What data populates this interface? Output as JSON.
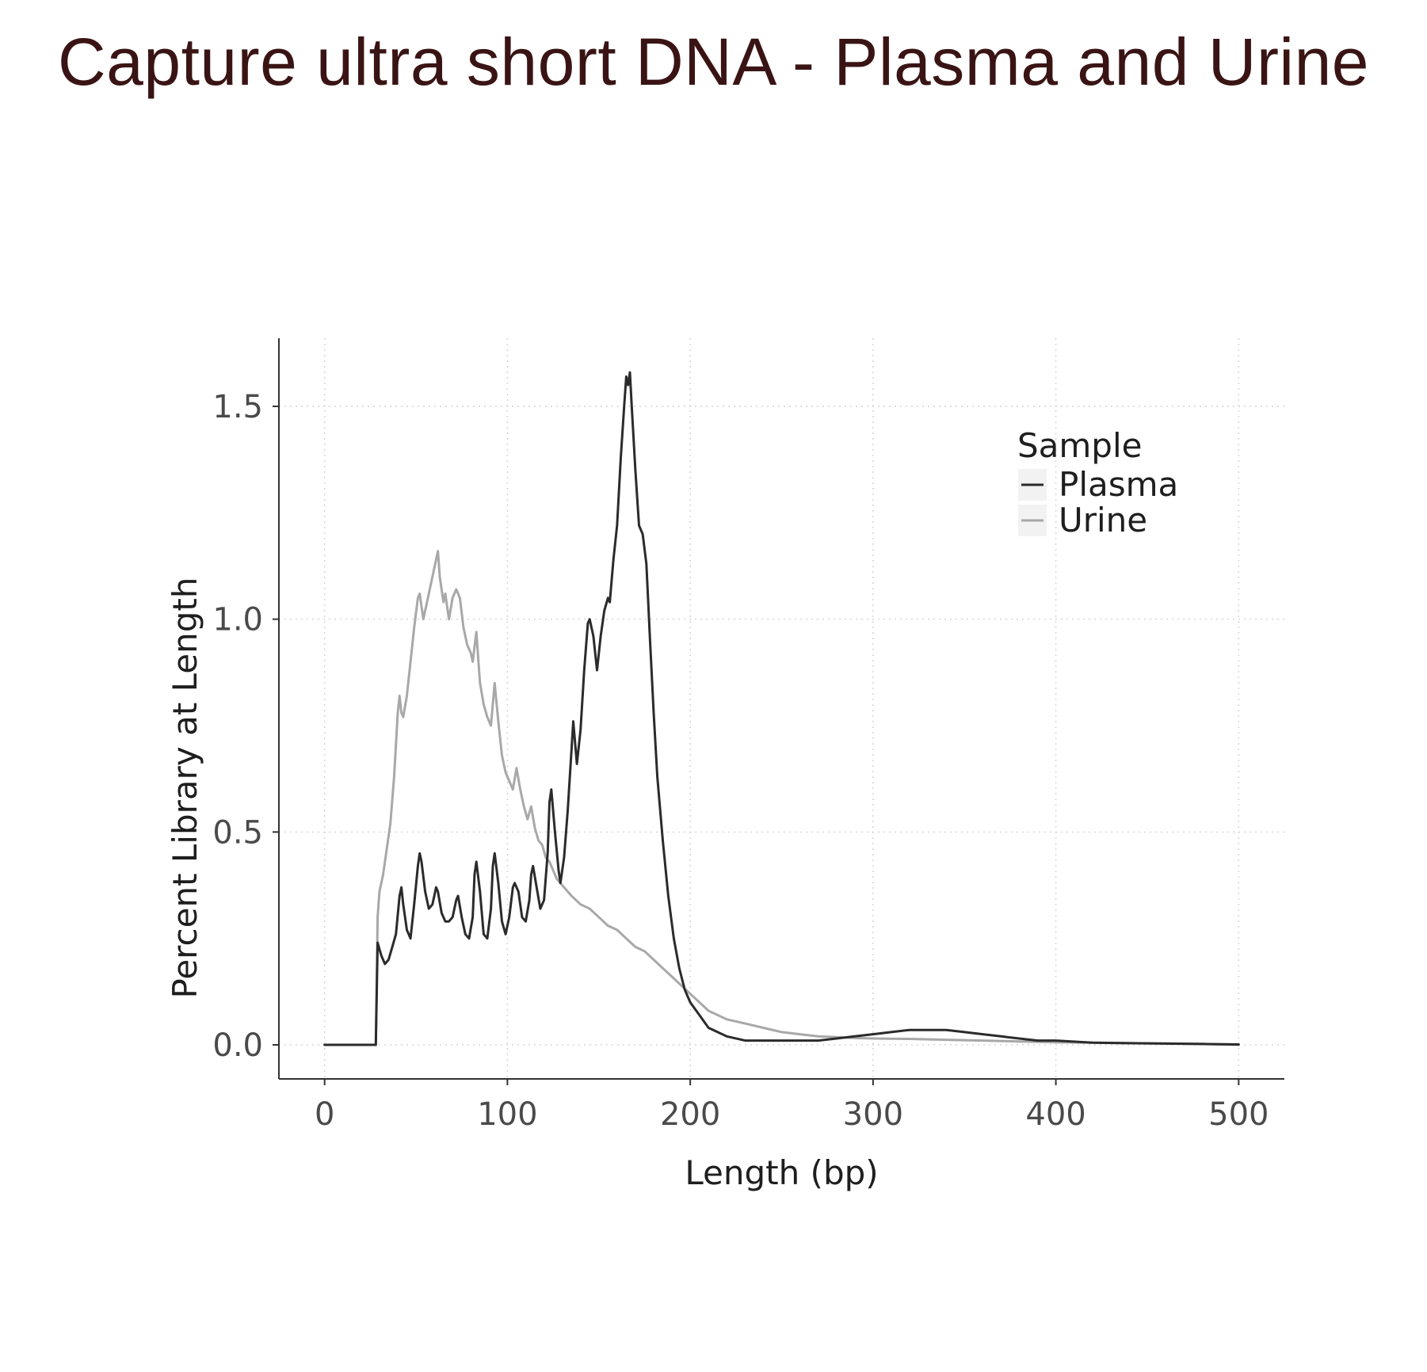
{
  "page": {
    "title": "Capture ultra short DNA - Plasma and Urine"
  },
  "chart_data": {
    "type": "line",
    "title": "",
    "xlabel": "Length (bp)",
    "ylabel": "Percent Library at Length",
    "xlim": [
      -25,
      525
    ],
    "ylim": [
      -0.08,
      1.66
    ],
    "xticks": [
      0,
      100,
      200,
      300,
      400,
      500
    ],
    "yticks": [
      0.0,
      0.5,
      1.0,
      1.5
    ],
    "xtick_labels": [
      "0",
      "100",
      "200",
      "300",
      "400",
      "500"
    ],
    "ytick_labels": [
      "0.0",
      "0.5",
      "1.0",
      "1.5"
    ],
    "grid": true,
    "legend": {
      "title": "Sample",
      "position": "top-right"
    },
    "series": [
      {
        "name": "Plasma",
        "color": "#2b2b2b",
        "points": [
          [
            0,
            0
          ],
          [
            27,
            0
          ],
          [
            28,
            0.0
          ],
          [
            29,
            0.24
          ],
          [
            31,
            0.21
          ],
          [
            33,
            0.19
          ],
          [
            35,
            0.2
          ],
          [
            37,
            0.23
          ],
          [
            39,
            0.26
          ],
          [
            41,
            0.35
          ],
          [
            42,
            0.37
          ],
          [
            43,
            0.33
          ],
          [
            45,
            0.27
          ],
          [
            47,
            0.25
          ],
          [
            49,
            0.33
          ],
          [
            51,
            0.42
          ],
          [
            52,
            0.45
          ],
          [
            53,
            0.43
          ],
          [
            55,
            0.36
          ],
          [
            57,
            0.32
          ],
          [
            59,
            0.33
          ],
          [
            61,
            0.37
          ],
          [
            62,
            0.36
          ],
          [
            64,
            0.31
          ],
          [
            66,
            0.29
          ],
          [
            68,
            0.29
          ],
          [
            70,
            0.3
          ],
          [
            72,
            0.34
          ],
          [
            73,
            0.35
          ],
          [
            75,
            0.3
          ],
          [
            77,
            0.26
          ],
          [
            79,
            0.25
          ],
          [
            81,
            0.3
          ],
          [
            82,
            0.4
          ],
          [
            83,
            0.43
          ],
          [
            85,
            0.36
          ],
          [
            87,
            0.26
          ],
          [
            89,
            0.25
          ],
          [
            91,
            0.32
          ],
          [
            92,
            0.42
          ],
          [
            93,
            0.45
          ],
          [
            95,
            0.38
          ],
          [
            97,
            0.29
          ],
          [
            99,
            0.26
          ],
          [
            101,
            0.3
          ],
          [
            103,
            0.37
          ],
          [
            104,
            0.38
          ],
          [
            106,
            0.36
          ],
          [
            108,
            0.3
          ],
          [
            110,
            0.29
          ],
          [
            112,
            0.34
          ],
          [
            113,
            0.4
          ],
          [
            114,
            0.42
          ],
          [
            116,
            0.37
          ],
          [
            118,
            0.32
          ],
          [
            120,
            0.34
          ],
          [
            122,
            0.45
          ],
          [
            123,
            0.57
          ],
          [
            124,
            0.6
          ],
          [
            126,
            0.5
          ],
          [
            128,
            0.41
          ],
          [
            129,
            0.38
          ],
          [
            131,
            0.44
          ],
          [
            133,
            0.55
          ],
          [
            135,
            0.69
          ],
          [
            136,
            0.76
          ],
          [
            138,
            0.66
          ],
          [
            140,
            0.74
          ],
          [
            142,
            0.88
          ],
          [
            144,
            0.99
          ],
          [
            145,
            1.0
          ],
          [
            147,
            0.96
          ],
          [
            149,
            0.88
          ],
          [
            151,
            0.96
          ],
          [
            153,
            1.02
          ],
          [
            155,
            1.05
          ],
          [
            156,
            1.04
          ],
          [
            158,
            1.14
          ],
          [
            160,
            1.22
          ],
          [
            162,
            1.38
          ],
          [
            164,
            1.51
          ],
          [
            165,
            1.57
          ],
          [
            166,
            1.55
          ],
          [
            167,
            1.58
          ],
          [
            168,
            1.5
          ],
          [
            170,
            1.35
          ],
          [
            172,
            1.22
          ],
          [
            174,
            1.2
          ],
          [
            176,
            1.13
          ],
          [
            178,
            0.95
          ],
          [
            180,
            0.78
          ],
          [
            182,
            0.63
          ],
          [
            185,
            0.48
          ],
          [
            188,
            0.35
          ],
          [
            191,
            0.25
          ],
          [
            194,
            0.18
          ],
          [
            197,
            0.13
          ],
          [
            200,
            0.1
          ],
          [
            205,
            0.07
          ],
          [
            210,
            0.04
          ],
          [
            215,
            0.03
          ],
          [
            220,
            0.02
          ],
          [
            230,
            0.01
          ],
          [
            240,
            0.01
          ],
          [
            250,
            0.01
          ],
          [
            260,
            0.01
          ],
          [
            270,
            0.01
          ],
          [
            280,
            0.015
          ],
          [
            290,
            0.02
          ],
          [
            300,
            0.025
          ],
          [
            310,
            0.03
          ],
          [
            320,
            0.035
          ],
          [
            330,
            0.035
          ],
          [
            340,
            0.035
          ],
          [
            350,
            0.03
          ],
          [
            360,
            0.025
          ],
          [
            370,
            0.02
          ],
          [
            380,
            0.015
          ],
          [
            390,
            0.01
          ],
          [
            400,
            0.01
          ],
          [
            420,
            0.005
          ],
          [
            440,
            0.004
          ],
          [
            460,
            0.003
          ],
          [
            480,
            0.002
          ],
          [
            500,
            0.001
          ]
        ]
      },
      {
        "name": "Urine",
        "color": "#a8a8a8",
        "points": [
          [
            0,
            0
          ],
          [
            28,
            0
          ],
          [
            29,
            0.3
          ],
          [
            30,
            0.36
          ],
          [
            32,
            0.4
          ],
          [
            34,
            0.46
          ],
          [
            36,
            0.52
          ],
          [
            38,
            0.63
          ],
          [
            40,
            0.78
          ],
          [
            41,
            0.82
          ],
          [
            42,
            0.78
          ],
          [
            43,
            0.77
          ],
          [
            45,
            0.82
          ],
          [
            47,
            0.9
          ],
          [
            49,
            0.98
          ],
          [
            51,
            1.05
          ],
          [
            52,
            1.06
          ],
          [
            54,
            1.0
          ],
          [
            56,
            1.04
          ],
          [
            58,
            1.08
          ],
          [
            60,
            1.12
          ],
          [
            62,
            1.16
          ],
          [
            63,
            1.1
          ],
          [
            65,
            1.04
          ],
          [
            66,
            1.06
          ],
          [
            68,
            1.0
          ],
          [
            70,
            1.05
          ],
          [
            72,
            1.07
          ],
          [
            74,
            1.05
          ],
          [
            76,
            0.98
          ],
          [
            78,
            0.94
          ],
          [
            80,
            0.92
          ],
          [
            81,
            0.9
          ],
          [
            83,
            0.97
          ],
          [
            85,
            0.85
          ],
          [
            87,
            0.8
          ],
          [
            89,
            0.77
          ],
          [
            91,
            0.75
          ],
          [
            93,
            0.85
          ],
          [
            95,
            0.76
          ],
          [
            97,
            0.68
          ],
          [
            99,
            0.64
          ],
          [
            101,
            0.62
          ],
          [
            103,
            0.6
          ],
          [
            105,
            0.65
          ],
          [
            107,
            0.6
          ],
          [
            109,
            0.56
          ],
          [
            111,
            0.53
          ],
          [
            113,
            0.56
          ],
          [
            115,
            0.51
          ],
          [
            117,
            0.48
          ],
          [
            119,
            0.47
          ],
          [
            121,
            0.44
          ],
          [
            123,
            0.43
          ],
          [
            125,
            0.41
          ],
          [
            127,
            0.39
          ],
          [
            129,
            0.38
          ],
          [
            131,
            0.37
          ],
          [
            135,
            0.35
          ],
          [
            140,
            0.33
          ],
          [
            145,
            0.32
          ],
          [
            150,
            0.3
          ],
          [
            155,
            0.28
          ],
          [
            160,
            0.27
          ],
          [
            165,
            0.25
          ],
          [
            170,
            0.23
          ],
          [
            175,
            0.22
          ],
          [
            180,
            0.2
          ],
          [
            185,
            0.18
          ],
          [
            190,
            0.16
          ],
          [
            195,
            0.14
          ],
          [
            200,
            0.12
          ],
          [
            205,
            0.1
          ],
          [
            210,
            0.08
          ],
          [
            220,
            0.06
          ],
          [
            230,
            0.05
          ],
          [
            240,
            0.04
          ],
          [
            250,
            0.03
          ],
          [
            260,
            0.025
          ],
          [
            270,
            0.02
          ],
          [
            280,
            0.018
          ],
          [
            290,
            0.016
          ],
          [
            300,
            0.015
          ],
          [
            320,
            0.014
          ],
          [
            340,
            0.012
          ],
          [
            360,
            0.01
          ],
          [
            380,
            0.008
          ],
          [
            400,
            0.006
          ],
          [
            420,
            0.005
          ],
          [
            440,
            0.004
          ],
          [
            460,
            0.003
          ],
          [
            480,
            0.002
          ],
          [
            500,
            0.0
          ]
        ]
      }
    ]
  }
}
